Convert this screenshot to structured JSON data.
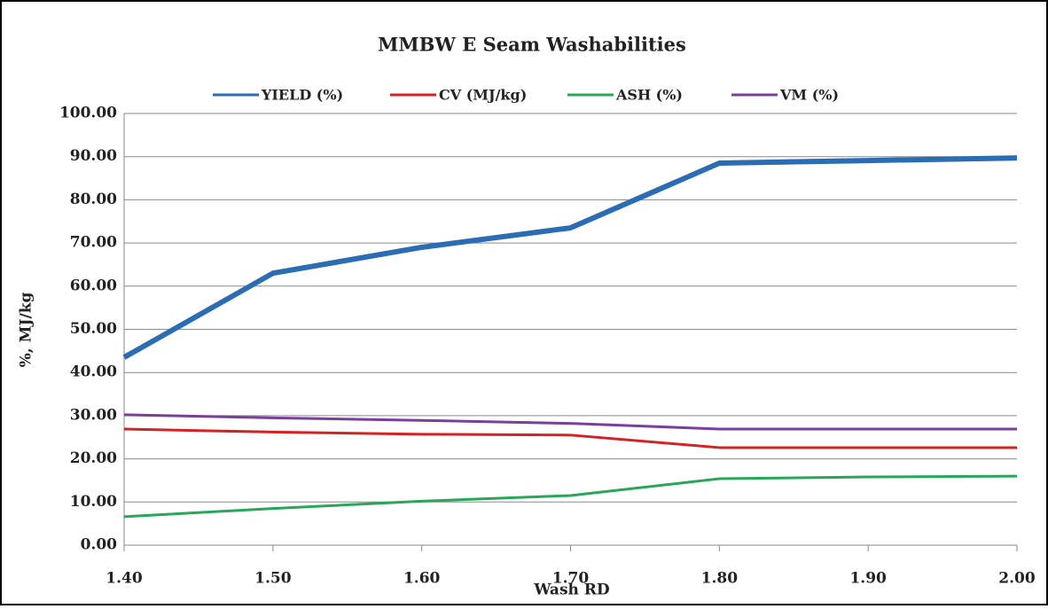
{
  "chart_data": {
    "type": "line",
    "title": "MMBW E Seam Washabilities",
    "x_label": "Wash RD",
    "y_label": "%, MJ/kg",
    "x": [
      1.4,
      1.5,
      1.6,
      1.7,
      1.8,
      1.9,
      2.0
    ],
    "series": [
      {
        "name": "YIELD (%)",
        "color": "#2a6db5",
        "values": [
          43.5,
          63.0,
          69.0,
          73.5,
          88.5,
          89.1,
          89.7
        ]
      },
      {
        "name": "CV (MJ/kg)",
        "color": "#d42222",
        "values": [
          26.9,
          26.2,
          25.7,
          25.5,
          22.6,
          22.6,
          22.6
        ]
      },
      {
        "name": "ASH (%)",
        "color": "#2aa65a",
        "values": [
          6.6,
          8.5,
          10.2,
          11.5,
          15.4,
          15.8,
          16.0
        ]
      },
      {
        "name": "VM (%)",
        "color": "#7a3f9c",
        "values": [
          30.2,
          29.5,
          28.9,
          28.2,
          26.9,
          26.9,
          26.9
        ]
      }
    ],
    "xlim": [
      1.4,
      2.0
    ],
    "xticks": [
      {
        "value": 1.4,
        "label": "1.40"
      },
      {
        "value": 1.5,
        "label": "1.50"
      },
      {
        "value": 1.6,
        "label": "1.60"
      },
      {
        "value": 1.7,
        "label": "1.70"
      },
      {
        "value": 1.8,
        "label": "1.80"
      },
      {
        "value": 1.9,
        "label": "1.90"
      },
      {
        "value": 2.0,
        "label": "2.00"
      }
    ],
    "ylim": [
      0,
      100
    ],
    "yticks": [
      {
        "value": 0,
        "label": "0.00"
      },
      {
        "value": 10,
        "label": "10.00"
      },
      {
        "value": 20,
        "label": "20.00"
      },
      {
        "value": 30,
        "label": "30.00"
      },
      {
        "value": 40,
        "label": "40.00"
      },
      {
        "value": 50,
        "label": "50.00"
      },
      {
        "value": 60,
        "label": "60.00"
      },
      {
        "value": 70,
        "label": "70.00"
      },
      {
        "value": 80,
        "label": "80.00"
      },
      {
        "value": 90,
        "label": "90.00"
      },
      {
        "value": 100,
        "label": "100.00"
      }
    ],
    "grid": true,
    "legend": "top"
  }
}
